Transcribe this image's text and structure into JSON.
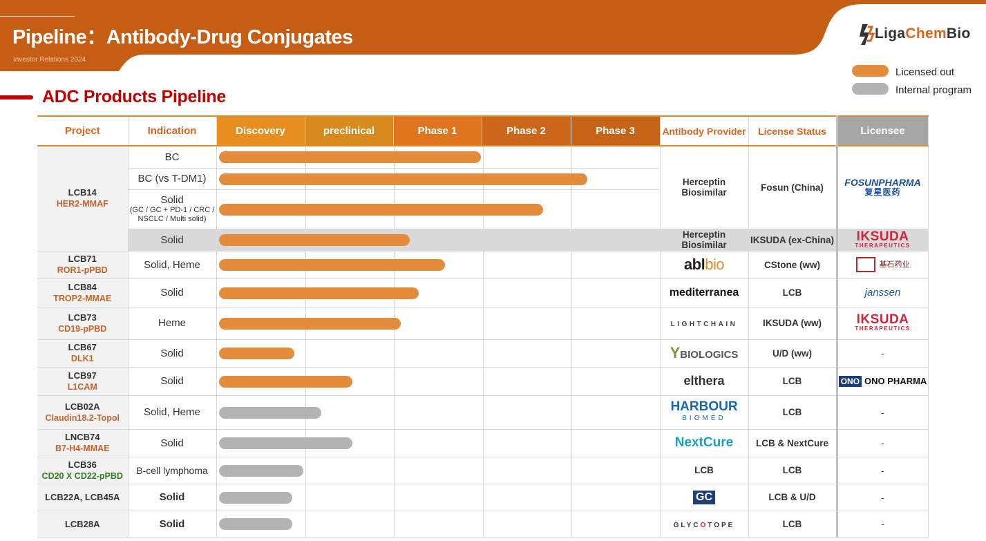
{
  "header": {
    "title": "Pipeline：Antibody-Drug Conjugates",
    "subtitle": "Investor Relations 2024",
    "logo_part1": "Liga",
    "logo_part2": "Chem",
    "logo_part3": "Bio"
  },
  "legend": [
    {
      "label": "Licensed out",
      "color": "#e58c3a"
    },
    {
      "label": "Internal program",
      "color": "#b3b3b3"
    }
  ],
  "section_title": "ADC Products Pipeline",
  "columns": {
    "project": "Project",
    "indication": "Indication",
    "discovery": "Discovery",
    "preclinical": "preclinical",
    "phase1": "Phase 1",
    "phase2": "Phase 2",
    "phase3": "Phase 3",
    "antibody_provider": "Antibody Provider",
    "license_status": "License Status",
    "licensee": "Licensee"
  },
  "rows": [
    {
      "project": "LCB14",
      "code": "HER2-MMAF",
      "indication": "BC",
      "progress_phases": 3.0,
      "status": "licensed",
      "provider": "Herceptin Biosimilar",
      "license_status": "Fosun (China)",
      "licensee": "FOSUNPHARMA"
    },
    {
      "indication": "BC (vs T-DM1)",
      "progress_phases": 4.2,
      "status": "licensed"
    },
    {
      "indication": "Solid",
      "indication_detail": "(GC / GC + PD-1 / CRC / NSCLC / Multi solid)",
      "progress_phases": 3.7,
      "status": "licensed"
    },
    {
      "indication": "Solid",
      "progress_phases": 2.2,
      "status": "licensed",
      "provider": "Herceptin Biosimilar",
      "license_status": "IKSUDA (ex-China)",
      "licensee": "IKSUDA"
    },
    {
      "project": "LCB71",
      "code": "ROR1-pPBD",
      "indication": "Solid, Heme",
      "progress_phases": 2.6,
      "status": "licensed",
      "provider": "ablbio",
      "license_status": "CStone (ww)",
      "licensee": "CStone"
    },
    {
      "project": "LCB84",
      "code": "TROP2-MMAE",
      "indication": "Solid",
      "progress_phases": 2.3,
      "status": "licensed",
      "provider": "mediterranea",
      "license_status": "LCB",
      "licensee": "Janssen"
    },
    {
      "project": "LCB73",
      "code": "CD19-pPBD",
      "indication": "Heme",
      "progress_phases": 2.1,
      "status": "licensed",
      "provider": "LIGHTCHAIN",
      "license_status": "IKSUDA (ww)",
      "licensee": "IKSUDA"
    },
    {
      "project": "LCB67",
      "code": "DLK1",
      "indication": "Solid",
      "progress_phases": 0.9,
      "status": "licensed",
      "provider": "YBIOLOGICS",
      "license_status": "U/D (ww)",
      "licensee": "-"
    },
    {
      "project": "LCB97",
      "code": "L1CAM",
      "indication": "Solid",
      "progress_phases": 1.55,
      "status": "licensed",
      "provider": "elthera",
      "license_status": "LCB",
      "licensee": "ONO PHARMA"
    },
    {
      "project": "LCB02A",
      "code": "Claudin18.2-Topol",
      "indication": "Solid, Heme",
      "progress_phases": 1.2,
      "status": "internal",
      "provider": "HARBOUR",
      "license_status": "LCB",
      "licensee": "-"
    },
    {
      "project": "LNCB74",
      "code": "B7-H4-MMAE",
      "indication": "Solid",
      "progress_phases": 1.55,
      "status": "internal",
      "provider": "NextCure",
      "license_status": "LCB & NextCure",
      "licensee": "-"
    },
    {
      "project": "LCB36",
      "code": "CD20 X CD22-pPBD",
      "indication": "B-cell lymphoma",
      "progress_phases": 1.0,
      "status": "internal",
      "provider": "LCB",
      "license_status": "LCB",
      "licensee": "-"
    },
    {
      "project": "LCB22A, LCB45A",
      "indication": "Solid",
      "progress_phases": 0.88,
      "status": "internal",
      "provider": "GC",
      "license_status": "LCB & U/D",
      "licensee": "-"
    },
    {
      "project": "LCB28A",
      "indication": "Solid",
      "progress_phases": 0.88,
      "status": "internal",
      "provider": "GLYCOTOPE",
      "license_status": "LCB",
      "licensee": "-"
    }
  ],
  "logos": {
    "fosun_en": "FOSUNPHARMA",
    "fosun_cn": "复星医药",
    "iksuda": "IKSUDA",
    "iksuda_sub": "THERAPEUTICS",
    "abl": "abl",
    "bio": "bio",
    "cstone": "基石药业",
    "mediterranea": "mediterranea",
    "janssen": "janssen",
    "lightchain": "LIGHTCHAIN",
    "ybio_y": "Y",
    "ybio": "BIOLOGICS",
    "elthera": "elthera",
    "ono_box": "ONO",
    "ono": "ONO PHARMA",
    "harbour": "HARBOUR",
    "harbour_sub": "BIOMED",
    "nextcure": "NextCure",
    "gc": "GC",
    "glyco_a": "GLYC",
    "glyco_b": "O",
    "glyco_c": "TOPE"
  }
}
